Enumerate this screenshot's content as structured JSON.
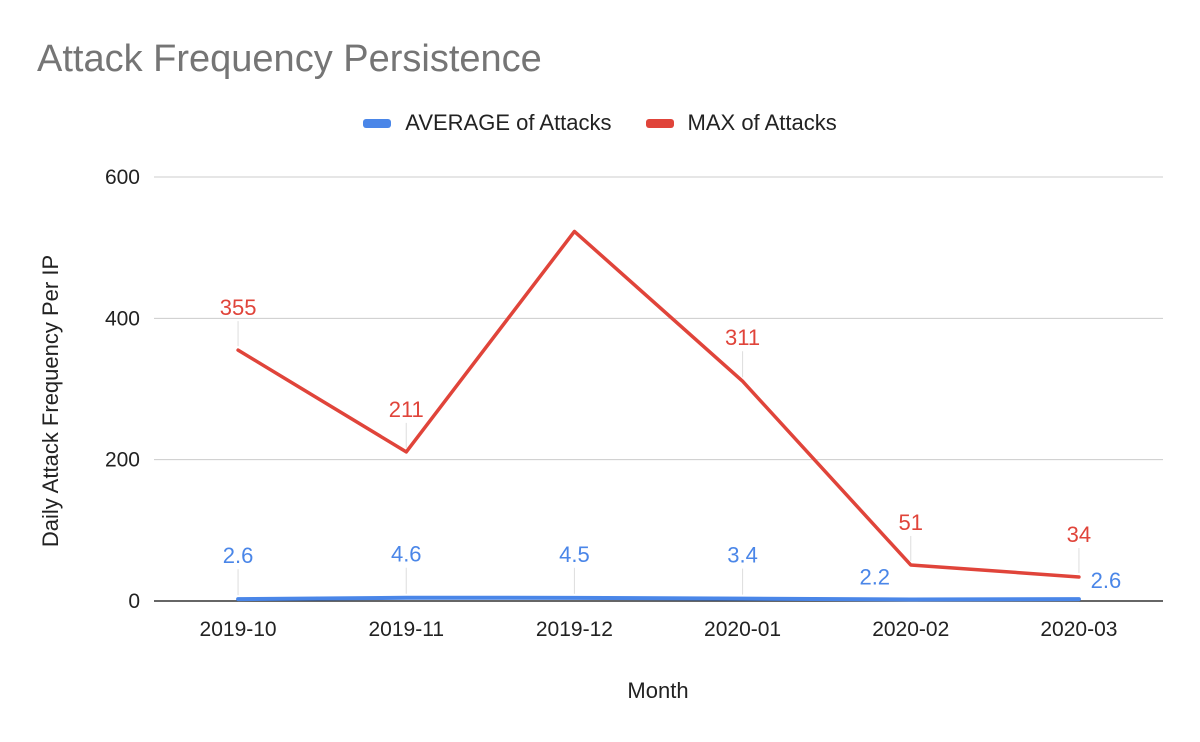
{
  "chart_data": {
    "type": "line",
    "title": "Attack Frequency Persistence",
    "xlabel": "Month",
    "ylabel": "Daily Attack Frequency Per IP",
    "categories": [
      "2019-10",
      "2019-11",
      "2019-12",
      "2020-01",
      "2020-02",
      "2020-03"
    ],
    "ylim": [
      0,
      600
    ],
    "yticks": [
      0,
      200,
      400,
      600
    ],
    "grid": true,
    "legend_position": "top",
    "series": [
      {
        "name": "AVERAGE of Attacks",
        "color": "#4a86e8",
        "values": [
          2.6,
          4.6,
          4.5,
          3.4,
          2.2,
          2.6
        ],
        "labels": [
          "2.6",
          "4.6",
          "4.5",
          "3.4",
          "2.2",
          "2.6"
        ],
        "show_label": [
          true,
          true,
          true,
          true,
          true,
          true
        ]
      },
      {
        "name": "MAX of Attacks",
        "color": "#e0443a",
        "values": [
          355,
          211,
          523,
          311,
          51,
          34
        ],
        "labels": [
          "355",
          "211",
          "",
          "311",
          "51",
          "34"
        ],
        "show_label": [
          true,
          true,
          false,
          true,
          true,
          true
        ]
      }
    ]
  }
}
